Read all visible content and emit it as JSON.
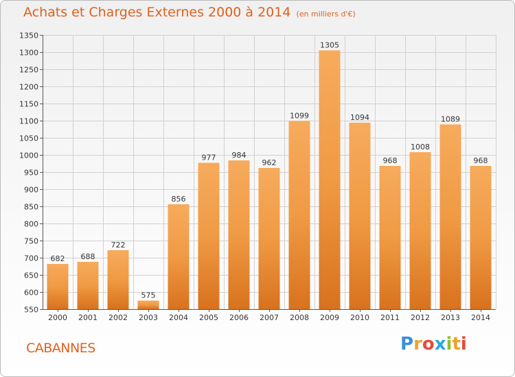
{
  "chart_data": {
    "type": "bar",
    "title": "Achats et Charges Externes 2000 à 2014",
    "subtitle": "(en milliers d'€)",
    "categories": [
      "2000",
      "2001",
      "2002",
      "2003",
      "2004",
      "2005",
      "2006",
      "2007",
      "2008",
      "2009",
      "2010",
      "2011",
      "2012",
      "2013",
      "2014"
    ],
    "values": [
      682,
      688,
      722,
      575,
      856,
      977,
      984,
      962,
      1099,
      1305,
      1094,
      968,
      1008,
      1089,
      968
    ],
    "value_labels": [
      "682",
      "688",
      "722",
      "575",
      "856",
      "977",
      "984",
      "962",
      "1099",
      "1305",
      "1094",
      "968",
      "1008",
      "1089",
      "968"
    ],
    "ylim": [
      550,
      1350
    ],
    "yticks": [
      550,
      600,
      650,
      700,
      750,
      800,
      850,
      900,
      950,
      1000,
      1050,
      1100,
      1150,
      1200,
      1250,
      1300,
      1350
    ],
    "ytick_labels": [
      "550",
      "600",
      "650",
      "700",
      "750",
      "800",
      "850",
      "900",
      "950",
      "1000",
      "1050",
      "1100",
      "1150",
      "1200",
      "1250",
      "1300",
      "1350"
    ],
    "grid": true,
    "legend": "none",
    "bar_color": "#f09a44",
    "bar_color_top": "#f6ab5c",
    "bar_color_bottom": "#d8721e"
  },
  "footer": {
    "place_name": "CABANNES",
    "brand_letters": [
      "P",
      "r",
      "o",
      "x",
      "i",
      "t",
      "i"
    ]
  },
  "colors": {
    "title": "#e0601b",
    "grid": "#d0d0d0",
    "axis": "#555555",
    "brand": [
      "#3a8fd8",
      "#f2a12b",
      "#e9493a",
      "#2aa6df",
      "#8fbf2f",
      "#f2a12b",
      "#e9493a"
    ]
  }
}
